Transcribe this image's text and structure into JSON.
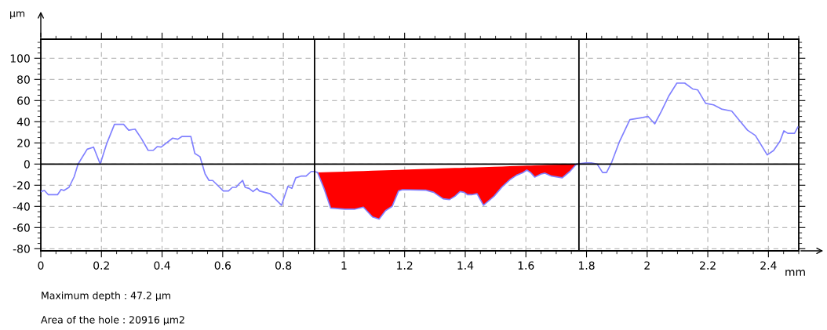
{
  "chart_data": {
    "type": "line",
    "xlabel": "mm",
    "ylabel": "µm",
    "xlim": [
      0,
      2.5
    ],
    "ylim": [
      -82,
      118
    ],
    "xticks": [
      0,
      0.2,
      0.4,
      0.6,
      0.8,
      1,
      1.2,
      1.4,
      1.6,
      1.8,
      2,
      2.2,
      2.4
    ],
    "yticks": [
      -80,
      -60,
      -40,
      -20,
      0,
      20,
      40,
      60,
      80,
      100
    ],
    "grid": true,
    "legend": false,
    "marker": "none",
    "line_style": "solid",
    "ref_lines": [
      {
        "axis": "y",
        "value": 0,
        "color": "#000000"
      },
      {
        "axis": "x",
        "value": 0.903,
        "color": "#000000"
      },
      {
        "axis": "x",
        "value": 1.775,
        "color": "#000000"
      }
    ],
    "series": [
      {
        "type": "area",
        "color": "#ff0000",
        "x": [
          0.913,
          0.934,
          0.956,
          1.003,
          1.034,
          1.064,
          1.094,
          1.116,
          1.137,
          1.159,
          1.18,
          1.193,
          1.27,
          1.296,
          1.327,
          1.348,
          1.366,
          1.383,
          1.396,
          1.408,
          1.421,
          1.439,
          1.46,
          1.495,
          1.521,
          1.547,
          1.569,
          1.59,
          1.603,
          1.616,
          1.629,
          1.65,
          1.663,
          1.685,
          1.72,
          1.745,
          1.767
        ],
        "values": [
          -8,
          -23,
          -41.5,
          -42.7,
          -42.7,
          -40.7,
          -50,
          -52,
          -44,
          -40,
          -25.4,
          -24.2,
          -24.7,
          -26.7,
          -32.8,
          -33.6,
          -30.4,
          -26,
          -26.7,
          -29,
          -29,
          -28,
          -39,
          -30.4,
          -21.7,
          -14.8,
          -10.6,
          -8.1,
          -5.7,
          -8.1,
          -12.3,
          -9.4,
          -8.6,
          -11.4,
          -13,
          -7,
          0
        ]
      },
      {
        "color": "#8080ff",
        "x": [
          0,
          0.012,
          0.025,
          0.055,
          0.067,
          0.076,
          0.093,
          0.11,
          0.123,
          0.153,
          0.174,
          0.196,
          0.217,
          0.243,
          0.273,
          0.29,
          0.311,
          0.332,
          0.354,
          0.371,
          0.384,
          0.397,
          0.435,
          0.452,
          0.465,
          0.495,
          0.508,
          0.525,
          0.542,
          0.555,
          0.567,
          0.602,
          0.619,
          0.632,
          0.644,
          0.653,
          0.666,
          0.674,
          0.687,
          0.7,
          0.713,
          0.721,
          0.756,
          0.794,
          0.815,
          0.828,
          0.841,
          0.858,
          0.875,
          0.892,
          0.903,
          0.913,
          0.934,
          0.956,
          1.003,
          1.034,
          1.064,
          1.094,
          1.116,
          1.137,
          1.159,
          1.18,
          1.193,
          1.27,
          1.296,
          1.327,
          1.348,
          1.366,
          1.383,
          1.396,
          1.408,
          1.421,
          1.439,
          1.46,
          1.495,
          1.521,
          1.547,
          1.569,
          1.59,
          1.603,
          1.616,
          1.629,
          1.65,
          1.663,
          1.685,
          1.72,
          1.745,
          1.767,
          1.797,
          1.818,
          1.835,
          1.853,
          1.866,
          1.883,
          1.909,
          1.943,
          1.986,
          2.003,
          2.025,
          2.047,
          2.072,
          2.098,
          2.124,
          2.15,
          2.167,
          2.193,
          2.219,
          2.245,
          2.279,
          2.305,
          2.331,
          2.357,
          2.396,
          2.417,
          2.438,
          2.451,
          2.464,
          2.486,
          2.497
        ],
        "values": [
          -26,
          -25,
          -29,
          -29,
          -24,
          -25,
          -22,
          -12,
          0,
          14,
          16,
          0,
          19,
          37.5,
          37.5,
          32,
          33,
          24,
          13,
          13,
          16.5,
          16,
          24.5,
          23.5,
          26,
          26,
          10,
          7,
          -9.4,
          -15.5,
          -15.5,
          -25.4,
          -25.4,
          -22,
          -22,
          -19,
          -15.5,
          -22,
          -23,
          -26,
          -23,
          -25.4,
          -28,
          -39,
          -21,
          -23,
          -13,
          -11.4,
          -11.4,
          -7,
          -7,
          -8,
          -23,
          -41.5,
          -42.7,
          -42.7,
          -40.7,
          -50,
          -52,
          -44,
          -40,
          -25.4,
          -24.2,
          -24.7,
          -26.7,
          -32.8,
          -33.6,
          -30.4,
          -26,
          -26.7,
          -29,
          -29,
          -28,
          -39,
          -30.4,
          -21.7,
          -14.8,
          -10.6,
          -8.1,
          -5.7,
          -8.1,
          -12.3,
          -9.4,
          -8.6,
          -11.4,
          -13,
          -7,
          0,
          1,
          1,
          0,
          -8,
          -8,
          1.7,
          21.5,
          42,
          44,
          45,
          38,
          50,
          64.7,
          76.5,
          76.5,
          71,
          70,
          57.3,
          56,
          52,
          50,
          41,
          32,
          27,
          8.6,
          12.8,
          21.5,
          31.4,
          29,
          29,
          35
        ]
      }
    ],
    "annotations": [
      "Maximum depth : 47.2 µm",
      "Area of the hole : 20916 µm2"
    ]
  }
}
